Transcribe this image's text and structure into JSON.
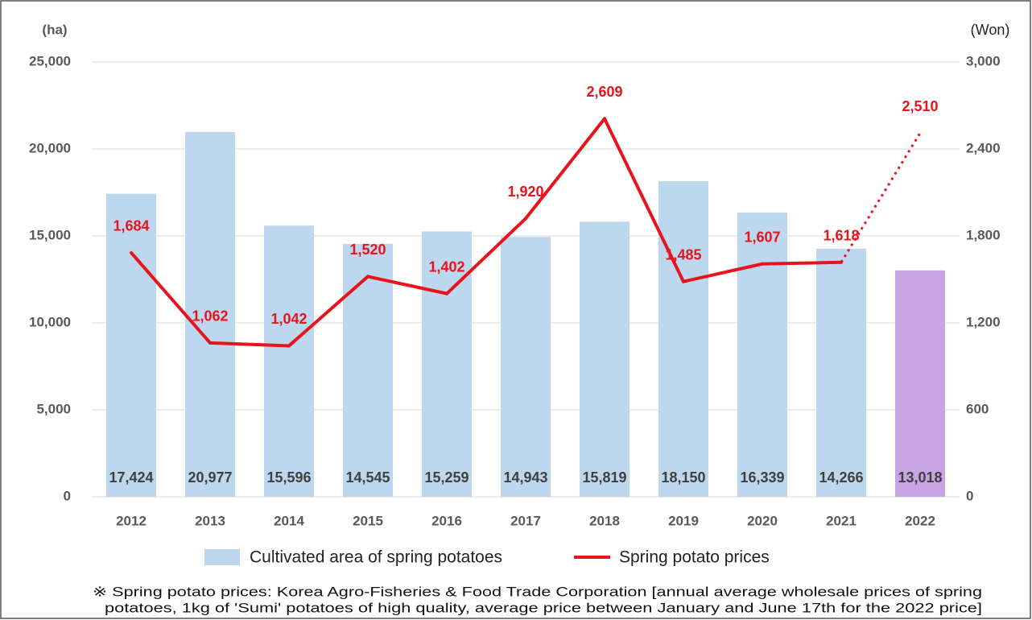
{
  "chart_data": {
    "type": "bar_line",
    "y_unit": "(ha)",
    "y2_unit": "(Won)",
    "categories": [
      "2012",
      "2013",
      "2014",
      "2015",
      "2016",
      "2017",
      "2018",
      "2019",
      "2020",
      "2021",
      "2022"
    ],
    "series": [
      {
        "name": "Cultivated area of spring potatoes",
        "type": "bar",
        "color": "#bdd7ee",
        "colors": [
          "#bdd7ee",
          "#bdd7ee",
          "#bdd7ee",
          "#bdd7ee",
          "#bdd7ee",
          "#bdd7ee",
          "#bdd7ee",
          "#bdd7ee",
          "#bdd7ee",
          "#bdd7ee",
          "#c9a4e4"
        ],
        "values": [
          17424,
          20977,
          15596,
          14545,
          15259,
          14943,
          15819,
          18150,
          16339,
          14266,
          13018
        ],
        "value_labels": [
          "17,424",
          "20,977",
          "15,596",
          "14,545",
          "15,259",
          "14,943",
          "15,819",
          "18,150",
          "16,339",
          "14,266",
          "13,018"
        ]
      },
      {
        "name": "Spring potato prices",
        "type": "line",
        "axis": "y2",
        "color": "#e8141b",
        "dotted_last_segment": true,
        "values": [
          1684,
          1062,
          1042,
          1520,
          1402,
          1920,
          2609,
          1485,
          1607,
          1618,
          2510
        ],
        "value_labels": [
          "1,684",
          "1,062",
          "1,042",
          "1,520",
          "1,402",
          "1,920",
          "2,609",
          "1,485",
          "1,607",
          "1,618",
          "2,510"
        ]
      }
    ],
    "ylim": [
      0,
      25000
    ],
    "yticks": [
      0,
      {
        "value": 5000,
        "label": "5,000"
      },
      {
        "value": 10000,
        "label": "10,000"
      },
      {
        "value": 15000,
        "label": "15,000"
      },
      {
        "value": 20000,
        "label": "20,000"
      },
      {
        "value": 25000,
        "label": "25,000"
      }
    ],
    "y2lim": [
      0,
      3000
    ],
    "y2ticks": [
      0,
      600,
      {
        "value": 1200,
        "label": "1,200"
      },
      {
        "value": 1800,
        "label": "1,800"
      },
      {
        "value": 2400,
        "label": "2,400"
      },
      {
        "value": 3000,
        "label": "3,000"
      }
    ],
    "grid": true,
    "legend": "bottom",
    "footnote": [
      "※ Spring potato prices: Korea Agro-Fisheries & Food Trade Corporation [annual average wholesale prices of spring",
      "potatoes, 1kg of 'Sumi' potatoes of high quality, average price between January and June 17th for the 2022 price]"
    ]
  }
}
